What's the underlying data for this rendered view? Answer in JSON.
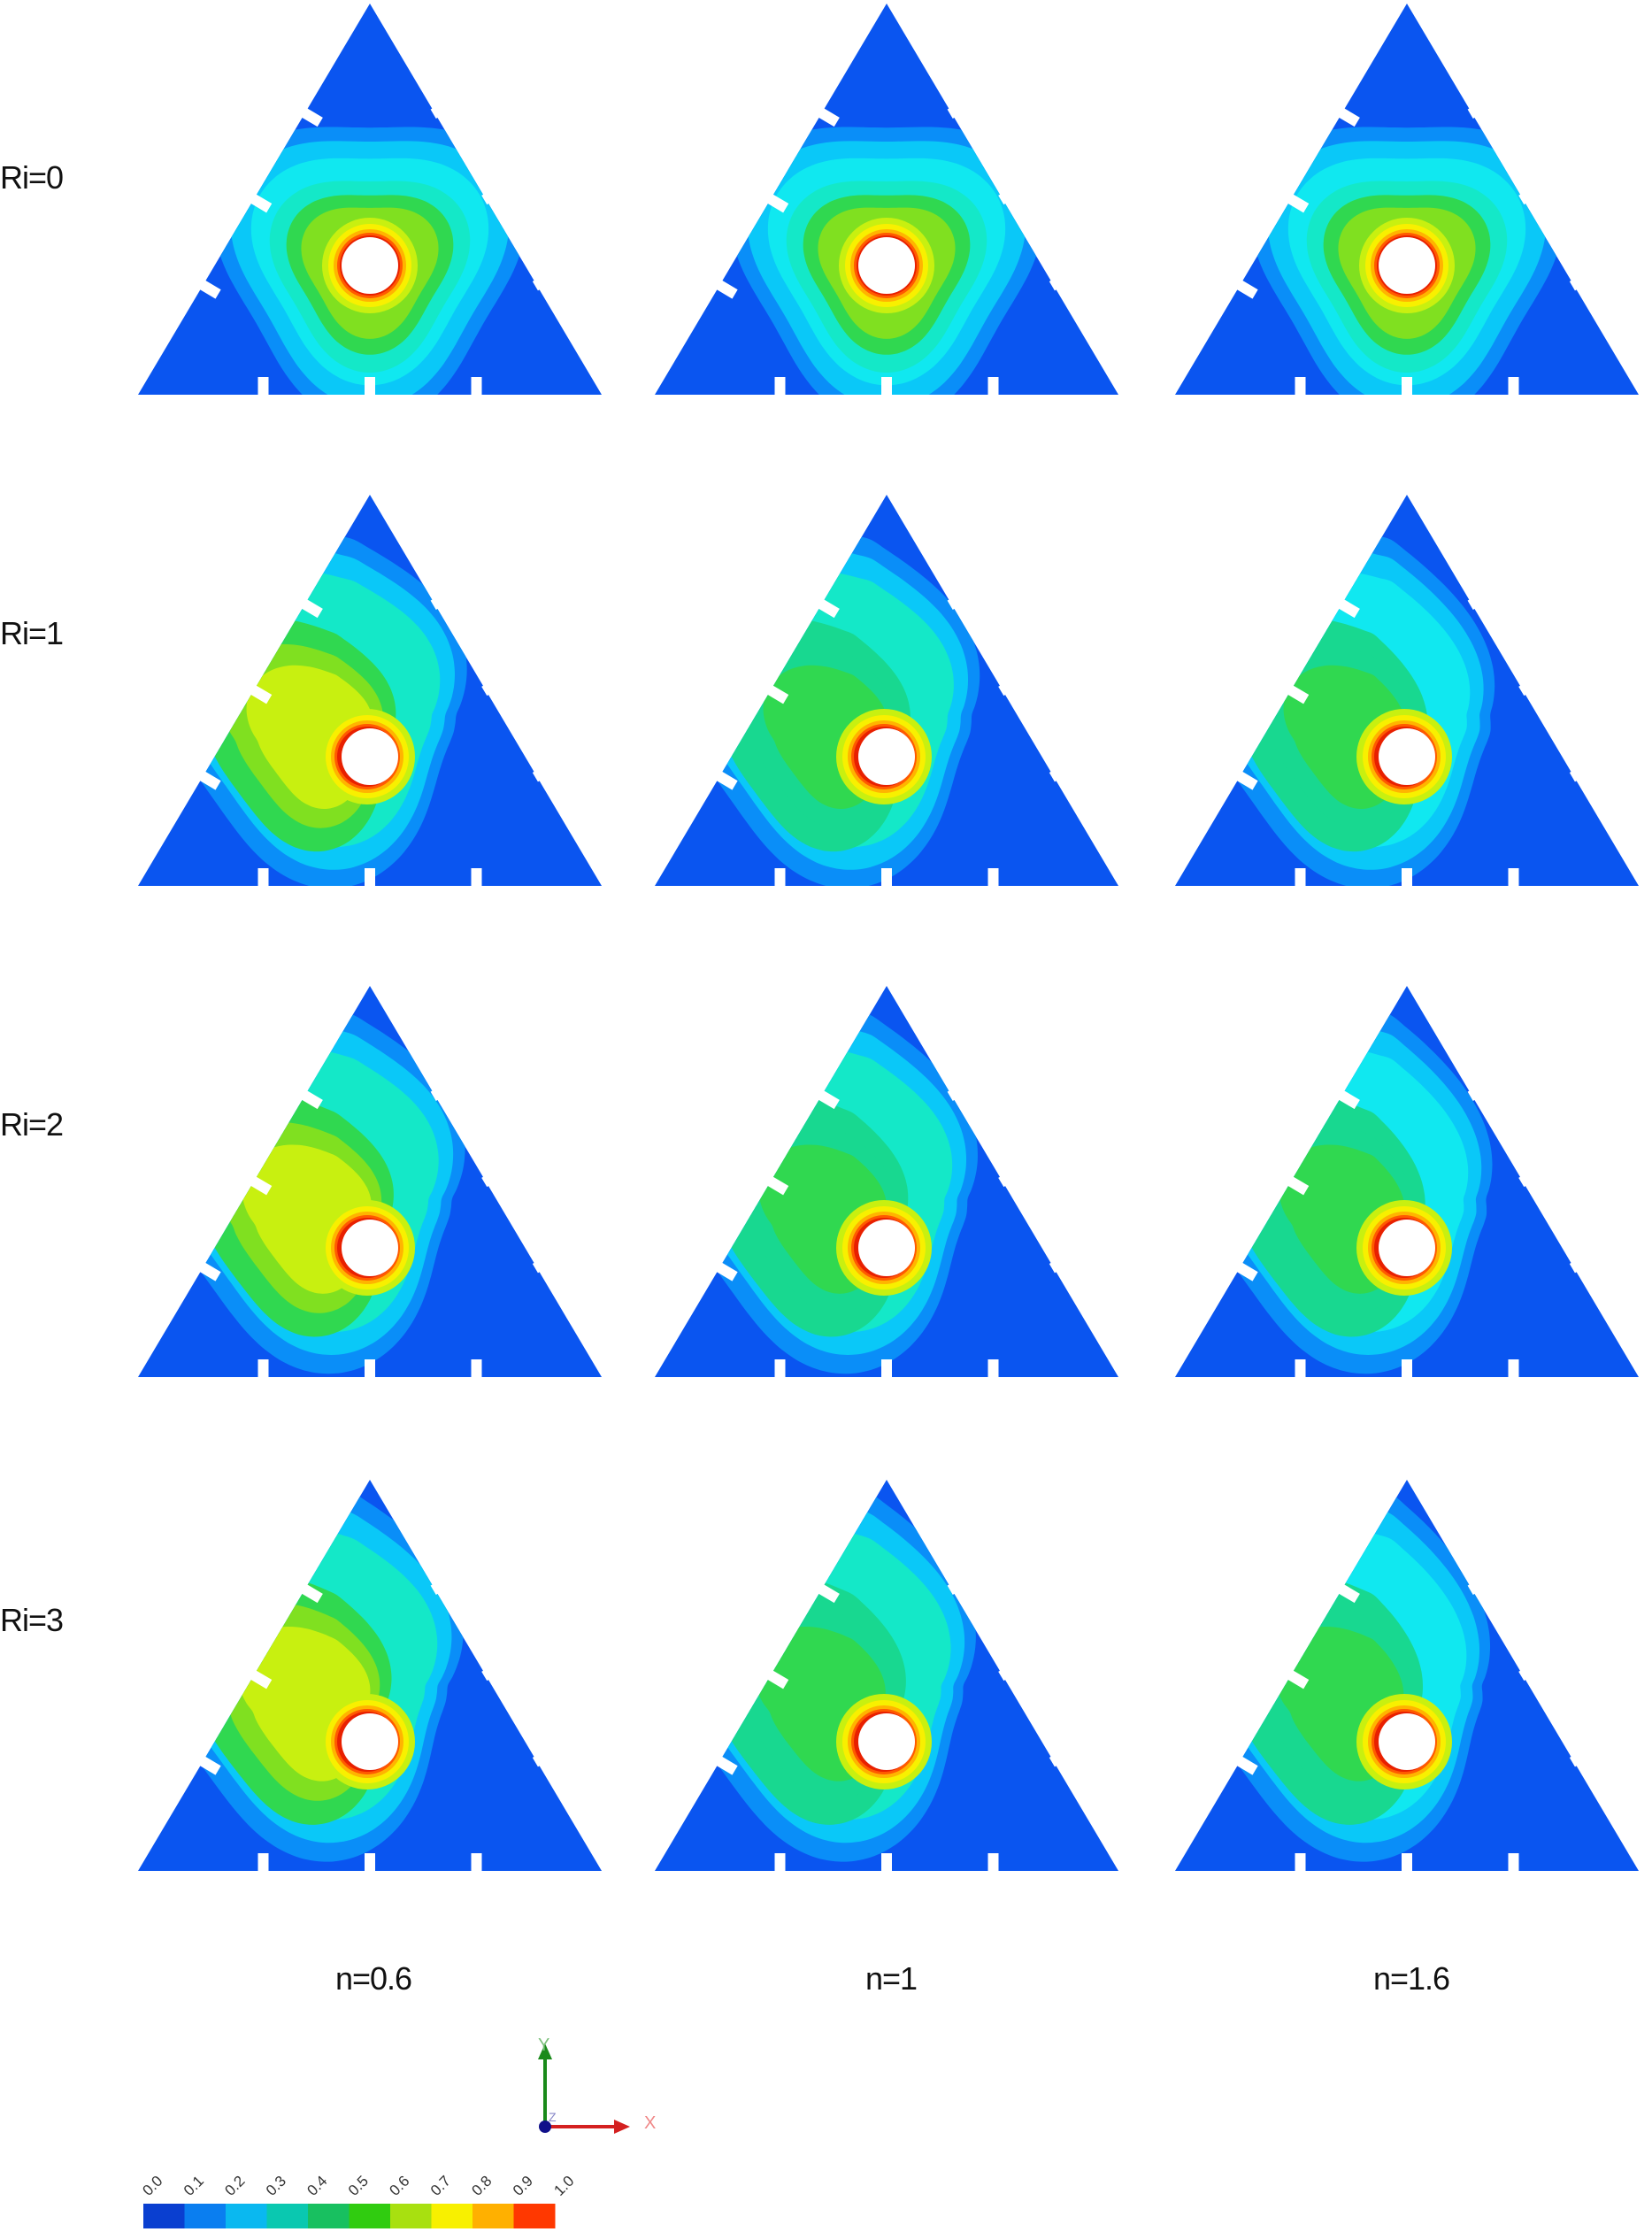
{
  "rows": [
    {
      "label": "Ri=0",
      "ri": 0
    },
    {
      "label": "Ri=1",
      "ri": 1
    },
    {
      "label": "Ri=2",
      "ri": 2
    },
    {
      "label": "Ri=3",
      "ri": 3
    }
  ],
  "columns": [
    {
      "label": "n=0.6",
      "n": 0.6
    },
    {
      "label": "n=1",
      "n": 1
    },
    {
      "label": "n=1.6",
      "n": 1.6
    }
  ],
  "legend": {
    "ticks": [
      "0.0",
      "0.1",
      "0.2",
      "0.3",
      "0.4",
      "0.5",
      "0.6",
      "0.7",
      "0.8",
      "0.9",
      "1.0"
    ],
    "colors": [
      "#0a3fd0",
      "#0a7ef0",
      "#0ab8f0",
      "#0ac8b0",
      "#18c060",
      "#30cc10",
      "#a8e010",
      "#f8f000",
      "#ffb000",
      "#ff3800"
    ]
  },
  "axes": {
    "y": "Y",
    "x": "X",
    "z": "Z"
  },
  "palette": {
    "outer": "#0a55f0",
    "levels": [
      "#0a55f0",
      "#0a8ef8",
      "#0ac8f8",
      "#10e8f0",
      "#14e8c8",
      "#18d890",
      "#30d850",
      "#80e020",
      "#c8f010",
      "#f8f000",
      "#ffb400",
      "#ff5a00",
      "#e82000"
    ]
  }
}
